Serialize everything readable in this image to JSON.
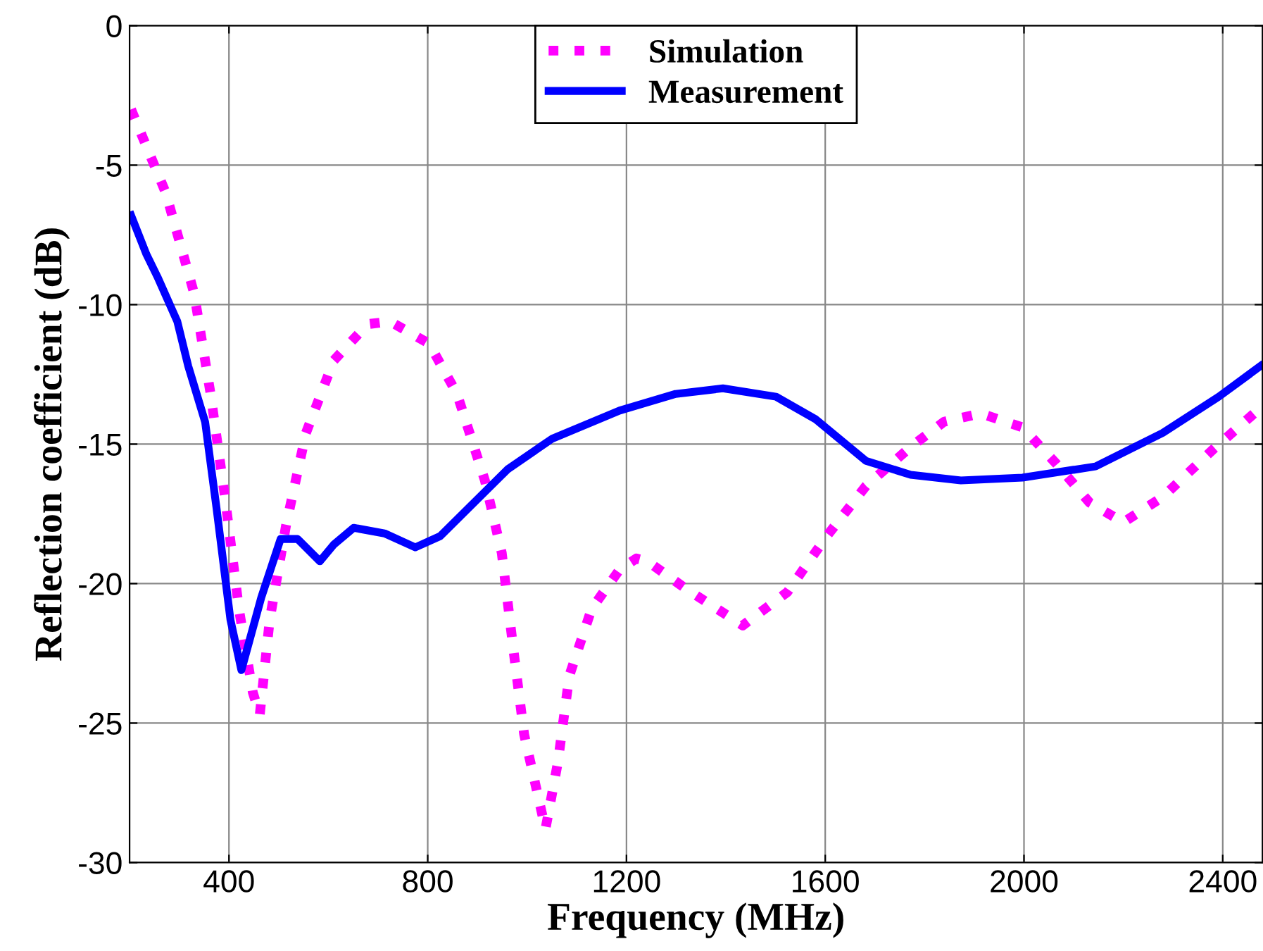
{
  "chart_data": {
    "type": "line",
    "xlabel": "Frequency (MHz)",
    "ylabel": "Reflection coefficient (dB)",
    "xlim": [
      200,
      2480
    ],
    "ylim": [
      -30,
      0
    ],
    "xticks": [
      400,
      800,
      1200,
      1600,
      2000,
      2400
    ],
    "yticks": [
      -30,
      -25,
      -20,
      -15,
      -10,
      -5,
      0
    ],
    "grid": true,
    "legend": "top",
    "series": [
      {
        "name": "Simulation",
        "color": "#ff00ff",
        "line_style": "dotted",
        "x": [
          203,
          273,
          330,
          363,
          392,
          420,
          448,
          462,
          482,
          515,
          555,
          611,
          679,
          724,
          803,
          859,
          915,
          949,
          972,
          994,
          1037,
          1062,
          1085,
          1130,
          1186,
          1220,
          1242,
          1321,
          1434,
          1524,
          1603,
          1682,
          1772,
          1839,
          1913,
          1997,
          2065,
          2132,
          2200,
          2279,
          2380,
          2476
        ],
        "values": [
          -3.0,
          -6.0,
          -9.6,
          -13.2,
          -16.9,
          -20.9,
          -23.9,
          -24.7,
          -21.3,
          -17.9,
          -14.6,
          -12.0,
          -10.7,
          -10.6,
          -11.4,
          -13.2,
          -16.3,
          -18.9,
          -22.3,
          -25.4,
          -28.8,
          -26.4,
          -23.3,
          -20.9,
          -19.5,
          -19.1,
          -19.2,
          -20.2,
          -21.5,
          -20.3,
          -18.3,
          -16.5,
          -15.1,
          -14.2,
          -13.9,
          -14.4,
          -15.7,
          -17.1,
          -17.8,
          -16.9,
          -15.2,
          -13.7
        ]
      },
      {
        "name": "Measurement",
        "color": "#0000ff",
        "line_style": "solid",
        "x": [
          203,
          234,
          256,
          296,
          318,
          352,
          375,
          403,
          425,
          465,
          504,
          538,
          583,
          611,
          651,
          713,
          775,
          825,
          893,
          961,
          1051,
          1186,
          1299,
          1394,
          1501,
          1580,
          1682,
          1772,
          1873,
          1997,
          2144,
          2279,
          2392,
          2476
        ],
        "values": [
          -6.8,
          -8.2,
          -9.0,
          -10.6,
          -12.2,
          -14.2,
          -17.3,
          -21.3,
          -23.1,
          -20.5,
          -18.4,
          -18.4,
          -19.2,
          -18.6,
          -18.0,
          -18.2,
          -18.7,
          -18.3,
          -17.1,
          -15.9,
          -14.8,
          -13.8,
          -13.2,
          -13.0,
          -13.3,
          -14.1,
          -15.6,
          -16.1,
          -16.3,
          -16.2,
          -15.8,
          -14.6,
          -13.3,
          -12.2
        ]
      }
    ]
  }
}
